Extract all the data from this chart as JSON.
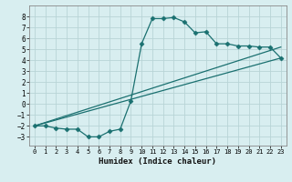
{
  "title": "",
  "xlabel": "Humidex (Indice chaleur)",
  "bg_color": "#d8eef0",
  "grid_color": "#b8d4d6",
  "line_color": "#1a7070",
  "xlim": [
    -0.5,
    23.5
  ],
  "ylim": [
    -3.8,
    9.0
  ],
  "xticks": [
    0,
    1,
    2,
    3,
    4,
    5,
    6,
    7,
    8,
    9,
    10,
    11,
    12,
    13,
    14,
    15,
    16,
    17,
    18,
    19,
    20,
    21,
    22,
    23
  ],
  "yticks": [
    -3,
    -2,
    -1,
    0,
    1,
    2,
    3,
    4,
    5,
    6,
    7,
    8
  ],
  "line1_x": [
    0,
    1,
    2,
    3,
    4,
    5,
    6,
    7,
    8,
    9,
    10,
    11,
    12,
    13,
    14,
    15,
    16,
    17,
    18,
    19,
    20,
    21,
    22,
    23
  ],
  "line1_y": [
    -2.0,
    -2.0,
    -2.2,
    -2.3,
    -2.3,
    -3.0,
    -3.0,
    -2.5,
    -2.3,
    0.3,
    5.5,
    7.8,
    7.8,
    7.9,
    7.5,
    6.5,
    6.6,
    5.5,
    5.5,
    5.3,
    5.3,
    5.2,
    5.2,
    4.2
  ],
  "line2_x": [
    0,
    23
  ],
  "line2_y": [
    -2.0,
    4.2
  ],
  "line3_x": [
    0,
    23
  ],
  "line3_y": [
    -2.0,
    5.2
  ],
  "marker": "D",
  "markersize": 2.5
}
